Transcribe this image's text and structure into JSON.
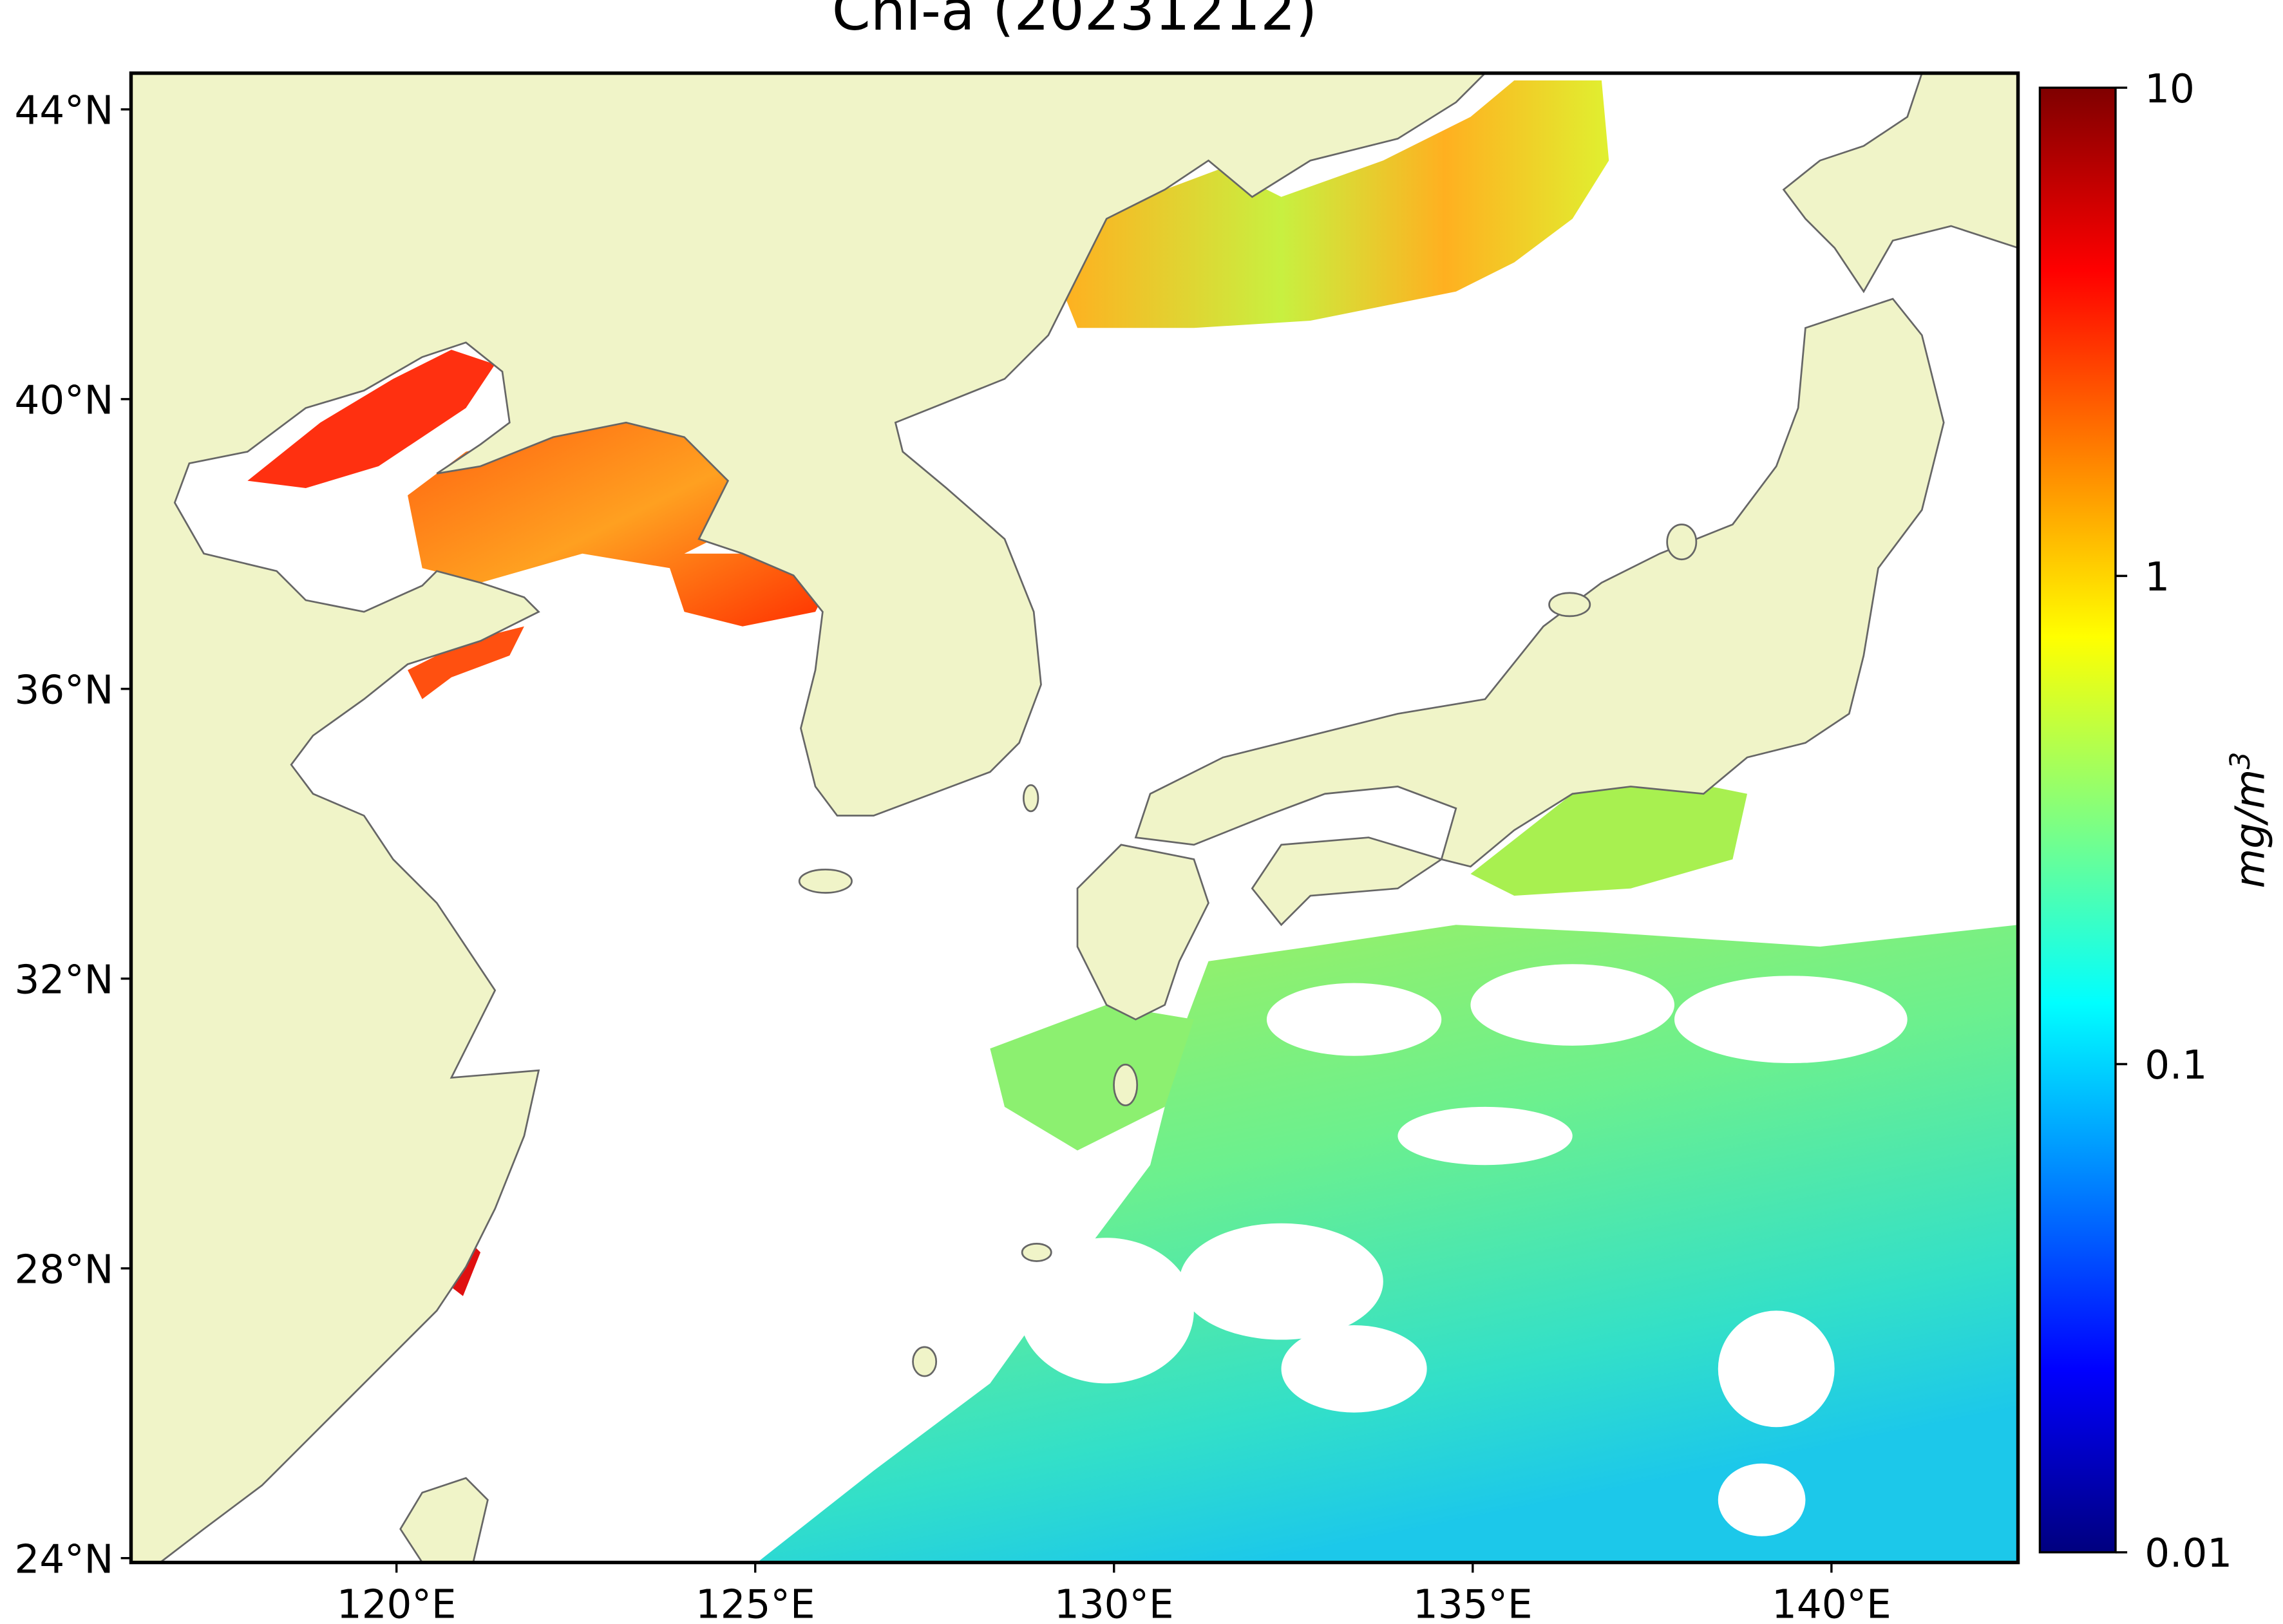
{
  "title": "Chl-a (20231212)",
  "map": {
    "xlim": [
      116.3,
      142.6
    ],
    "ylim": [
      23.94,
      44.5
    ],
    "xticks": [
      {
        "value": 120,
        "label": "120°E"
      },
      {
        "value": 125,
        "label": "125°E"
      },
      {
        "value": 130,
        "label": "130°E"
      },
      {
        "value": 135,
        "label": "135°E"
      },
      {
        "value": 140,
        "label": "140°E"
      }
    ],
    "yticks": [
      {
        "value": 24,
        "label": "24°N"
      },
      {
        "value": 28,
        "label": "28°N"
      },
      {
        "value": 32,
        "label": "32°N"
      },
      {
        "value": 36,
        "label": "36°N"
      },
      {
        "value": 40,
        "label": "40°N"
      },
      {
        "value": 44,
        "label": "44°N"
      }
    ]
  },
  "colorbar": {
    "scale": "log",
    "lim": [
      0.01,
      10
    ],
    "ticks": [
      0.01,
      0.1,
      1,
      10
    ],
    "colormap": [
      "#00007f",
      "#0000ff",
      "#0080ff",
      "#00ffff",
      "#80ff80",
      "#ffff00",
      "#ff8000",
      "#ff0000",
      "#7f0000"
    ],
    "label": {
      "text": "mg/m",
      "superscript": "3"
    }
  }
}
